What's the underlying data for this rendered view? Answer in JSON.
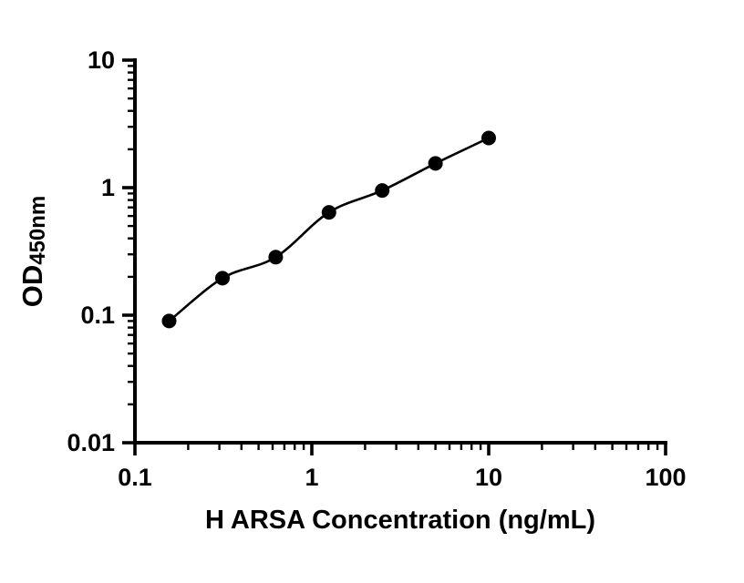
{
  "chart_data": {
    "type": "scatter",
    "title": "",
    "xlabel": "H ARSA Concentration (ng/mL)",
    "ylabel": "OD450nm",
    "ylabel_main": "OD",
    "ylabel_sub": "450nm",
    "xscale": "log",
    "yscale": "log",
    "xlim": [
      0.1,
      100
    ],
    "ylim": [
      0.01,
      10
    ],
    "x_tick_labels": [
      "0.1",
      "1",
      "10",
      "100"
    ],
    "x_tick_values": [
      0.1,
      1,
      10,
      100
    ],
    "y_tick_labels": [
      "0.01",
      "0.1",
      "1",
      "10"
    ],
    "y_tick_values": [
      0.01,
      0.1,
      1,
      10
    ],
    "grid": false,
    "legend": "none",
    "marker_color": "#000000",
    "line_color": "#000000",
    "x": [
      0.156,
      0.3125,
      0.625,
      1.25,
      2.5,
      5,
      10
    ],
    "y": [
      0.09,
      0.195,
      0.285,
      0.64,
      0.95,
      1.55,
      2.45
    ]
  }
}
